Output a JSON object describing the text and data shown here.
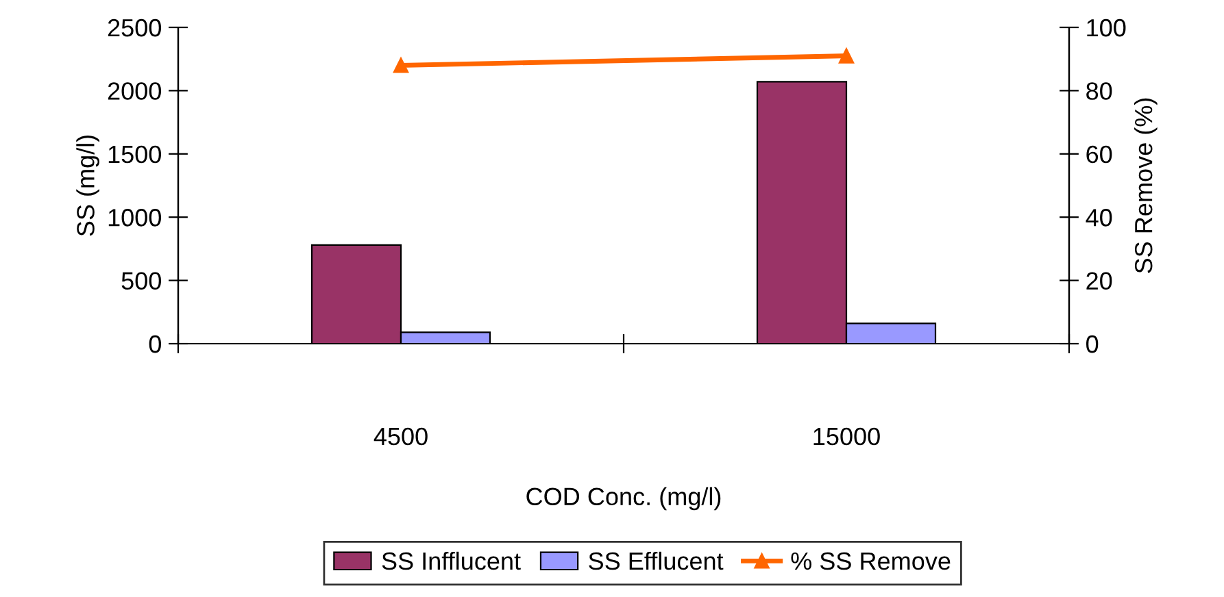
{
  "chart_data": {
    "type": "bar",
    "xlabel": "COD Conc. (mg/l)",
    "ylabel": "SS (mg/l)",
    "y2label": "SS Remove (%)",
    "categories": [
      "4500",
      "15000"
    ],
    "series": [
      {
        "name": "SS Infflucent",
        "color": "#993366",
        "values": [
          780,
          2070
        ]
      },
      {
        "name": "SS Efflucent",
        "color": "#9999ff",
        "values": [
          90,
          160
        ]
      },
      {
        "name": "% SS Remove",
        "color": "#ff6600",
        "values": [
          88,
          91
        ],
        "type": "line",
        "axis": "y2",
        "marker": "triangle"
      }
    ],
    "ylim": [
      0,
      2500
    ],
    "yticks": [
      0,
      500,
      1000,
      1500,
      2000,
      2500
    ],
    "y2lim": [
      0,
      100
    ],
    "y2ticks": [
      0,
      20,
      40,
      60,
      80,
      100
    ],
    "grid": false,
    "legend": "bottom"
  }
}
